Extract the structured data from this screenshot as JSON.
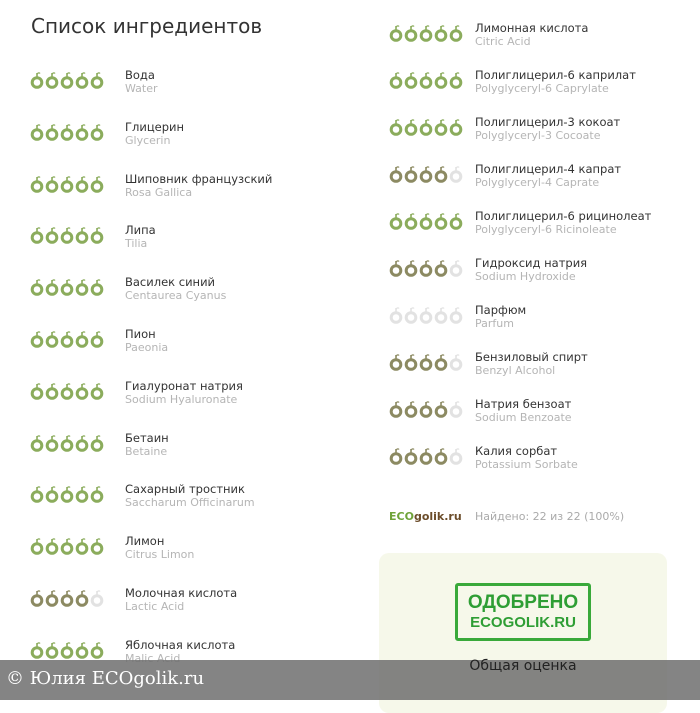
{
  "title": "Список ингредиентов",
  "colors": {
    "full": "#8bac5c",
    "partial": "#8c8a62",
    "empty": "#e2e2e2",
    "stamp": "#39a93a"
  },
  "left": [
    {
      "name": "Вода",
      "latin": "Water",
      "rating": 5
    },
    {
      "name": "Глицерин",
      "latin": "Glycerin",
      "rating": 5
    },
    {
      "name": "Шиповник французский",
      "latin": "Rosa Gallica",
      "rating": 5
    },
    {
      "name": "Липа",
      "latin": "Tilia",
      "rating": 5
    },
    {
      "name": "Василек синий",
      "latin": "Centaurea Cyanus",
      "rating": 5
    },
    {
      "name": "Пион",
      "latin": "Paeonia",
      "rating": 5
    },
    {
      "name": "Гиалуронат натрия",
      "latin": "Sodium Hyaluronate",
      "rating": 5
    },
    {
      "name": "Бетаин",
      "latin": "Betaine",
      "rating": 5
    },
    {
      "name": "Сахарный тростник",
      "latin": "Saccharum Officinarum",
      "rating": 5
    },
    {
      "name": "Лимон",
      "latin": "Citrus Limon",
      "rating": 5
    },
    {
      "name": "Молочная кислота",
      "latin": "Lactic Acid",
      "rating": 4
    },
    {
      "name": "Яблочная кислота",
      "latin": "Malic Acid",
      "rating": 5
    }
  ],
  "right": [
    {
      "name": "Лимонная кислота",
      "latin": "Citric Acid",
      "rating": 5
    },
    {
      "name": "Полиглицерил-6 каприлат",
      "latin": "Polyglyceryl-6 Caprylate",
      "rating": 5
    },
    {
      "name": "Полиглицерил-3 кокоат",
      "latin": "Polyglyceryl-3 Cocoate",
      "rating": 5
    },
    {
      "name": "Полиглицерил-4 капрат",
      "latin": "Polyglyceryl-4 Caprate",
      "rating": 4
    },
    {
      "name": "Полиглицерил-6 рицинолеат",
      "latin": "Polyglyceryl-6 Ricinoleate",
      "rating": 5
    },
    {
      "name": "Гидроксид натрия",
      "latin": "Sodium Hydroxide",
      "rating": 4
    },
    {
      "name": "Парфюм",
      "latin": "Parfum",
      "rating": 0
    },
    {
      "name": "Бензиловый спирт",
      "latin": "Benzyl Alcohol",
      "rating": 4
    },
    {
      "name": "Натрия бензоат",
      "latin": "Sodium Benzoate",
      "rating": 4
    },
    {
      "name": "Калия сорбат",
      "latin": "Potassium Sorbate",
      "rating": 4
    }
  ],
  "logo": {
    "eco": "ECO",
    "rest": "golik.ru"
  },
  "found": "Найдено: 22 из 22 (100%)",
  "stamp": {
    "line1": "ОДОБРЕНО",
    "line2": "ECOGOLIK.RU"
  },
  "overall": "Общая оценка",
  "footer": "© Юлия  ECOgolik.ru"
}
